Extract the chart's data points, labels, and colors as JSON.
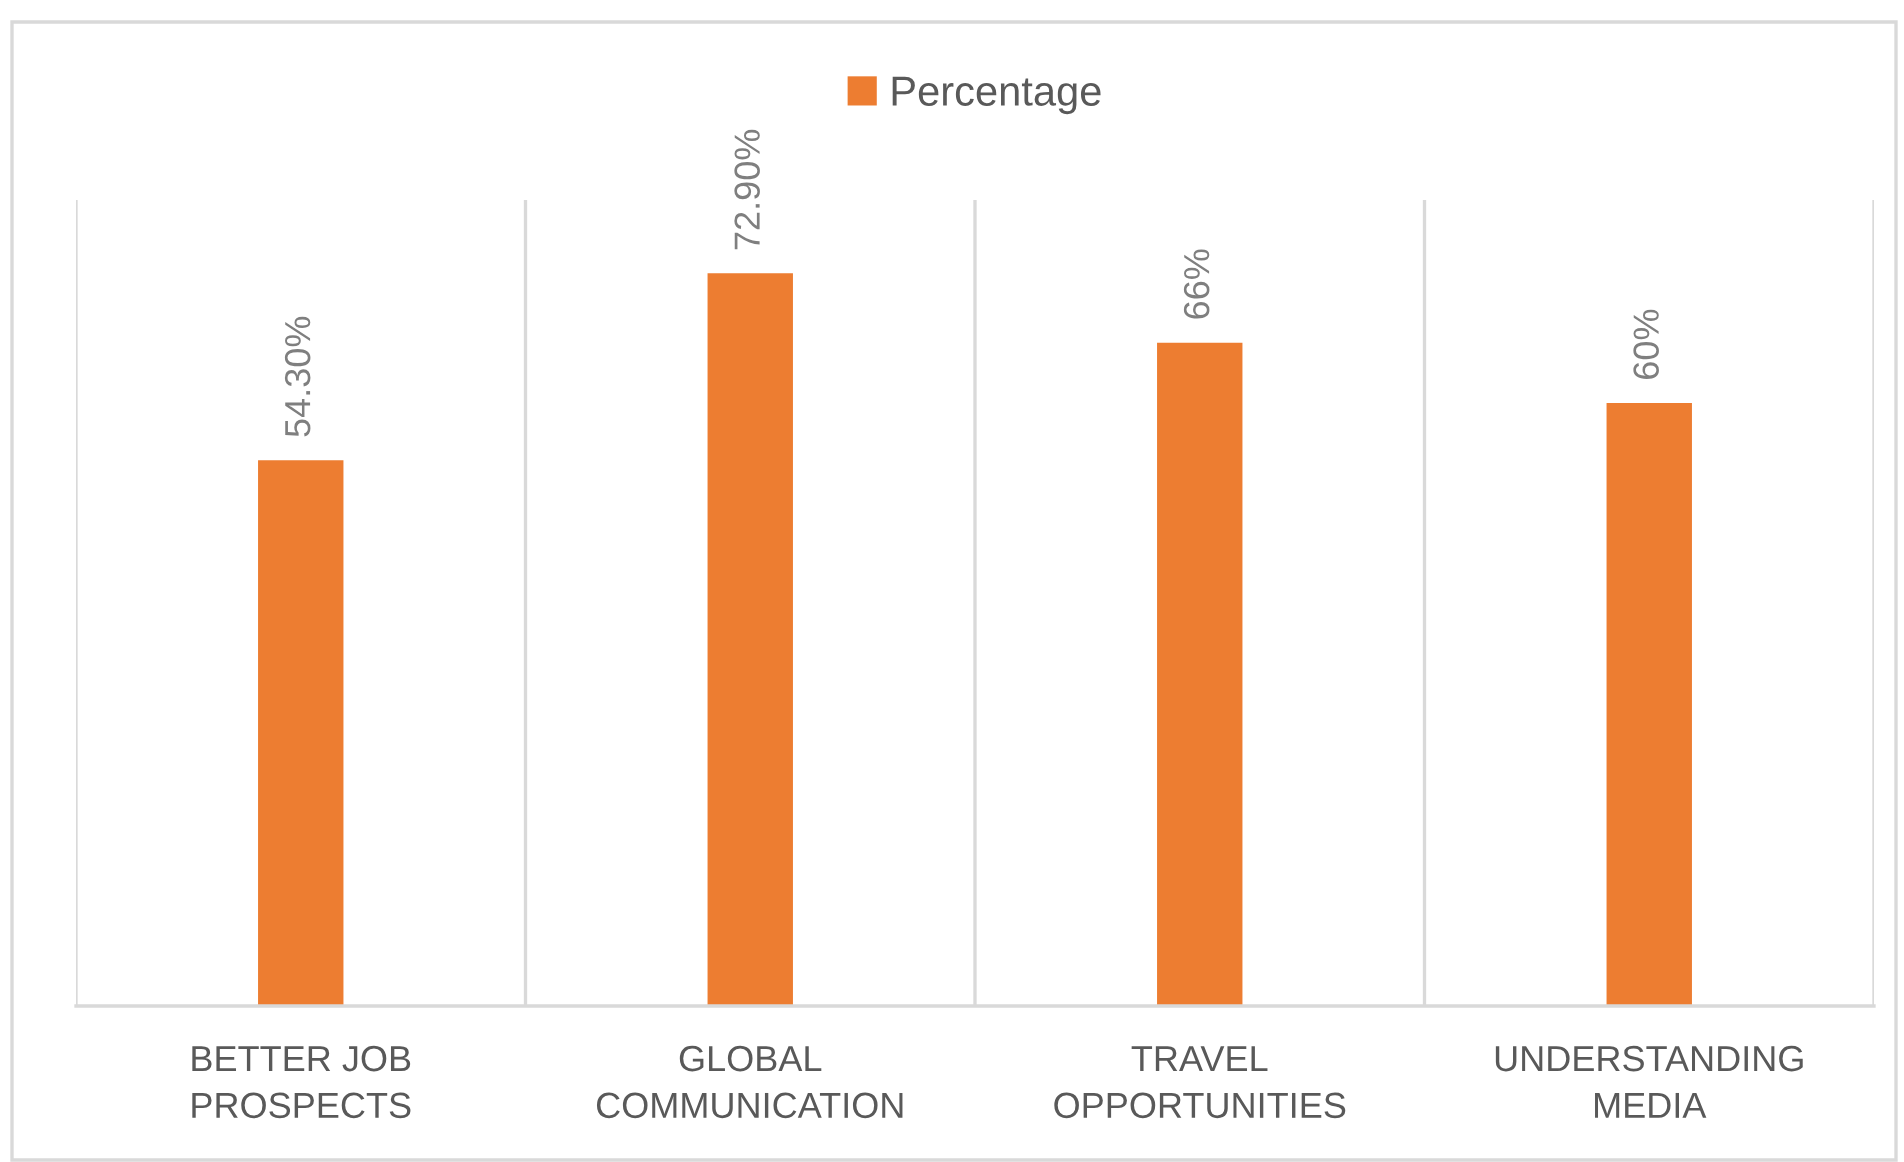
{
  "chart_data": {
    "type": "bar",
    "categories": [
      "BETTER JOB PROSPECTS",
      "GLOBAL COMMUNICATION",
      "TRAVEL OPPORTUNITIES",
      "UNDERSTANDING MEDIA"
    ],
    "series": [
      {
        "name": "Percentage",
        "color": "#ed7d31",
        "values": [
          54.3,
          72.9,
          66,
          60
        ],
        "value_labels": [
          "54.30%",
          "72.90%",
          "66%",
          "60%"
        ]
      }
    ],
    "grid": "x",
    "legend": "top",
    "tick_labels": "x"
  }
}
